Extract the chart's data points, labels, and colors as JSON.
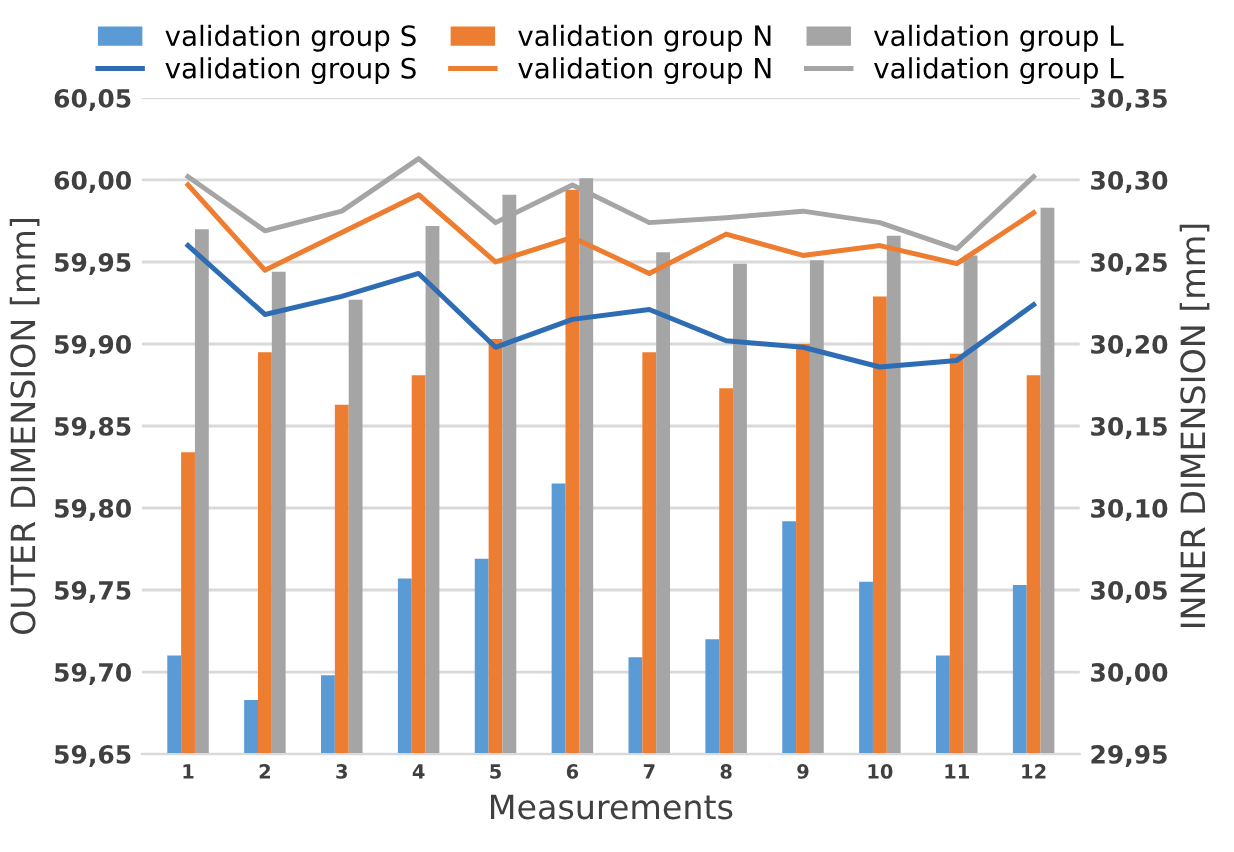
{
  "chart_data": {
    "type": "bar",
    "xlabel": "Measurements",
    "ylabel": "OUTER DIMENSION [mm]",
    "y2label": "INNER DIMENSION [mm]",
    "categories": [
      "1",
      "2",
      "3",
      "4",
      "5",
      "6",
      "7",
      "8",
      "9",
      "10",
      "11",
      "12"
    ],
    "series": [
      {
        "name": "validation group S",
        "color": "#5b9bd5",
        "values": [
          59.71,
          59.683,
          59.698,
          59.757,
          59.769,
          59.815,
          59.709,
          59.72,
          59.792,
          59.755,
          59.71,
          59.753
        ]
      },
      {
        "name": "validation group N",
        "color": "#ed7d31",
        "values": [
          59.834,
          59.895,
          59.863,
          59.881,
          59.903,
          59.994,
          59.895,
          59.873,
          59.9,
          59.929,
          59.894,
          59.881
        ]
      },
      {
        "name": "validation group L",
        "color": "#a5a5a5",
        "values": [
          59.97,
          59.944,
          59.927,
          59.972,
          59.991,
          60.001,
          59.956,
          59.949,
          59.951,
          59.966,
          59.954,
          59.983
        ]
      },
      {
        "name": "validation group S",
        "type": "line",
        "axis": "y2",
        "color": "#2e6db4",
        "values": [
          30.26,
          30.218,
          30.229,
          30.243,
          30.198,
          30.215,
          30.221,
          30.202,
          30.198,
          30.186,
          30.19,
          30.224
        ]
      },
      {
        "name": "validation group N",
        "type": "line",
        "axis": "y2",
        "color": "#ed7d31",
        "values": [
          30.297,
          30.245,
          30.268,
          30.291,
          30.25,
          30.265,
          30.243,
          30.267,
          30.254,
          30.26,
          30.249,
          30.28
        ]
      },
      {
        "name": "validation group L",
        "type": "line",
        "axis": "y2",
        "color": "#a5a5a5",
        "values": [
          30.302,
          30.269,
          30.281,
          30.313,
          30.274,
          30.297,
          30.274,
          30.277,
          30.281,
          30.274,
          30.258,
          30.302
        ]
      }
    ],
    "ylim": [
      59.65,
      60.05
    ],
    "yticks": [
      {
        "value": 59.65,
        "label": "59,65"
      },
      {
        "value": 59.7,
        "label": "59,70"
      },
      {
        "value": 59.75,
        "label": "59,75"
      },
      {
        "value": 59.8,
        "label": "59,80"
      },
      {
        "value": 59.85,
        "label": "59,85"
      },
      {
        "value": 59.9,
        "label": "59,90"
      },
      {
        "value": 59.95,
        "label": "59,95"
      },
      {
        "value": 60.0,
        "label": "60,00"
      },
      {
        "value": 60.05,
        "label": "60,05"
      }
    ],
    "y2lim": [
      29.95,
      30.35
    ],
    "y2ticks": [
      {
        "value": 29.95,
        "label": "29,95"
      },
      {
        "value": 30.0,
        "label": "30,00"
      },
      {
        "value": 30.05,
        "label": "30,05"
      },
      {
        "value": 30.1,
        "label": "30,10"
      },
      {
        "value": 30.15,
        "label": "30,15"
      },
      {
        "value": 30.2,
        "label": "30,20"
      },
      {
        "value": 30.25,
        "label": "30,25"
      },
      {
        "value": 30.3,
        "label": "30,30"
      },
      {
        "value": 30.35,
        "label": "30,35"
      }
    ],
    "grid": "y",
    "legend": "top",
    "marker": "none",
    "line_style": "solid"
  }
}
